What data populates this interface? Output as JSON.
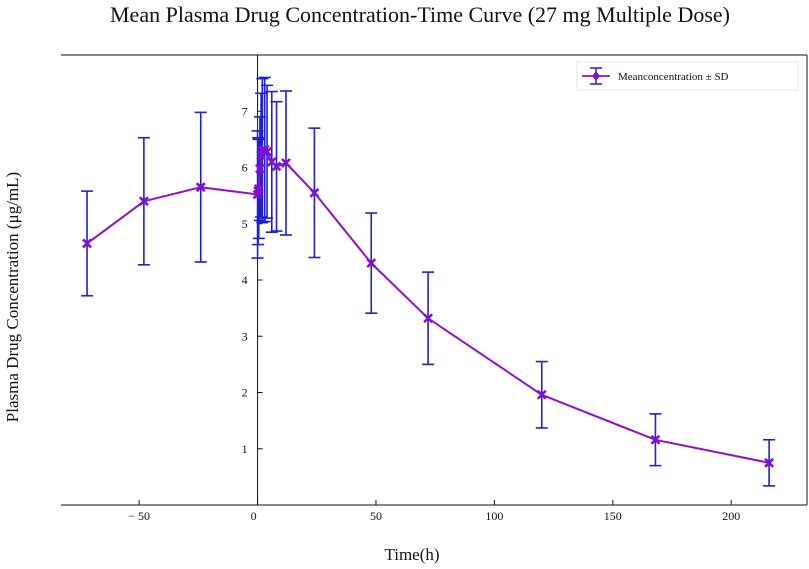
{
  "chart_data": {
    "type": "line",
    "title": "Mean Plasma Drug Concentration-Time Curve (27 mg Multiple Dose)",
    "xlabel": "Time(h)",
    "ylabel": "Plasma Drug Concentration (μg/mL)",
    "xlim": [
      -83,
      232
    ],
    "ylim": [
      0,
      8
    ],
    "x_ticks": [
      -50,
      0,
      50,
      100,
      150,
      200
    ],
    "x_tick_labels": [
      "− 50",
      "0",
      "50",
      "100",
      "150",
      "200"
    ],
    "y_ticks": [
      1,
      2,
      3,
      4,
      5,
      6,
      7
    ],
    "y_tick_labels": [
      "1",
      "2",
      "3",
      "4",
      "5",
      "6",
      "7"
    ],
    "legend": {
      "label": "Meanconcentration ± SD",
      "placement": "top-right"
    },
    "colors": {
      "line": "#8e0fcf",
      "marker": "#7d12d6",
      "errorbar": "#1f1fd6"
    },
    "series": [
      {
        "name": "Meanconcentration ± SD",
        "x": [
          -72,
          -48,
          -24,
          0,
          0.25,
          0.5,
          1,
          1.5,
          2,
          3,
          4,
          6,
          8,
          12,
          24,
          48,
          72,
          120,
          168,
          216
        ],
        "y": [
          4.65,
          5.4,
          5.65,
          5.52,
          5.58,
          5.62,
          5.98,
          6.22,
          6.3,
          6.32,
          6.28,
          6.1,
          6.02,
          6.08,
          5.55,
          4.3,
          3.32,
          1.96,
          1.16,
          0.75
        ],
        "sd": [
          0.93,
          1.13,
          1.33,
          1.13,
          0.95,
          0.88,
          0.92,
          1.1,
          1.28,
          1.28,
          1.18,
          1.25,
          1.15,
          1.28,
          1.15,
          0.89,
          0.82,
          0.59,
          0.46,
          0.41
        ]
      }
    ]
  }
}
